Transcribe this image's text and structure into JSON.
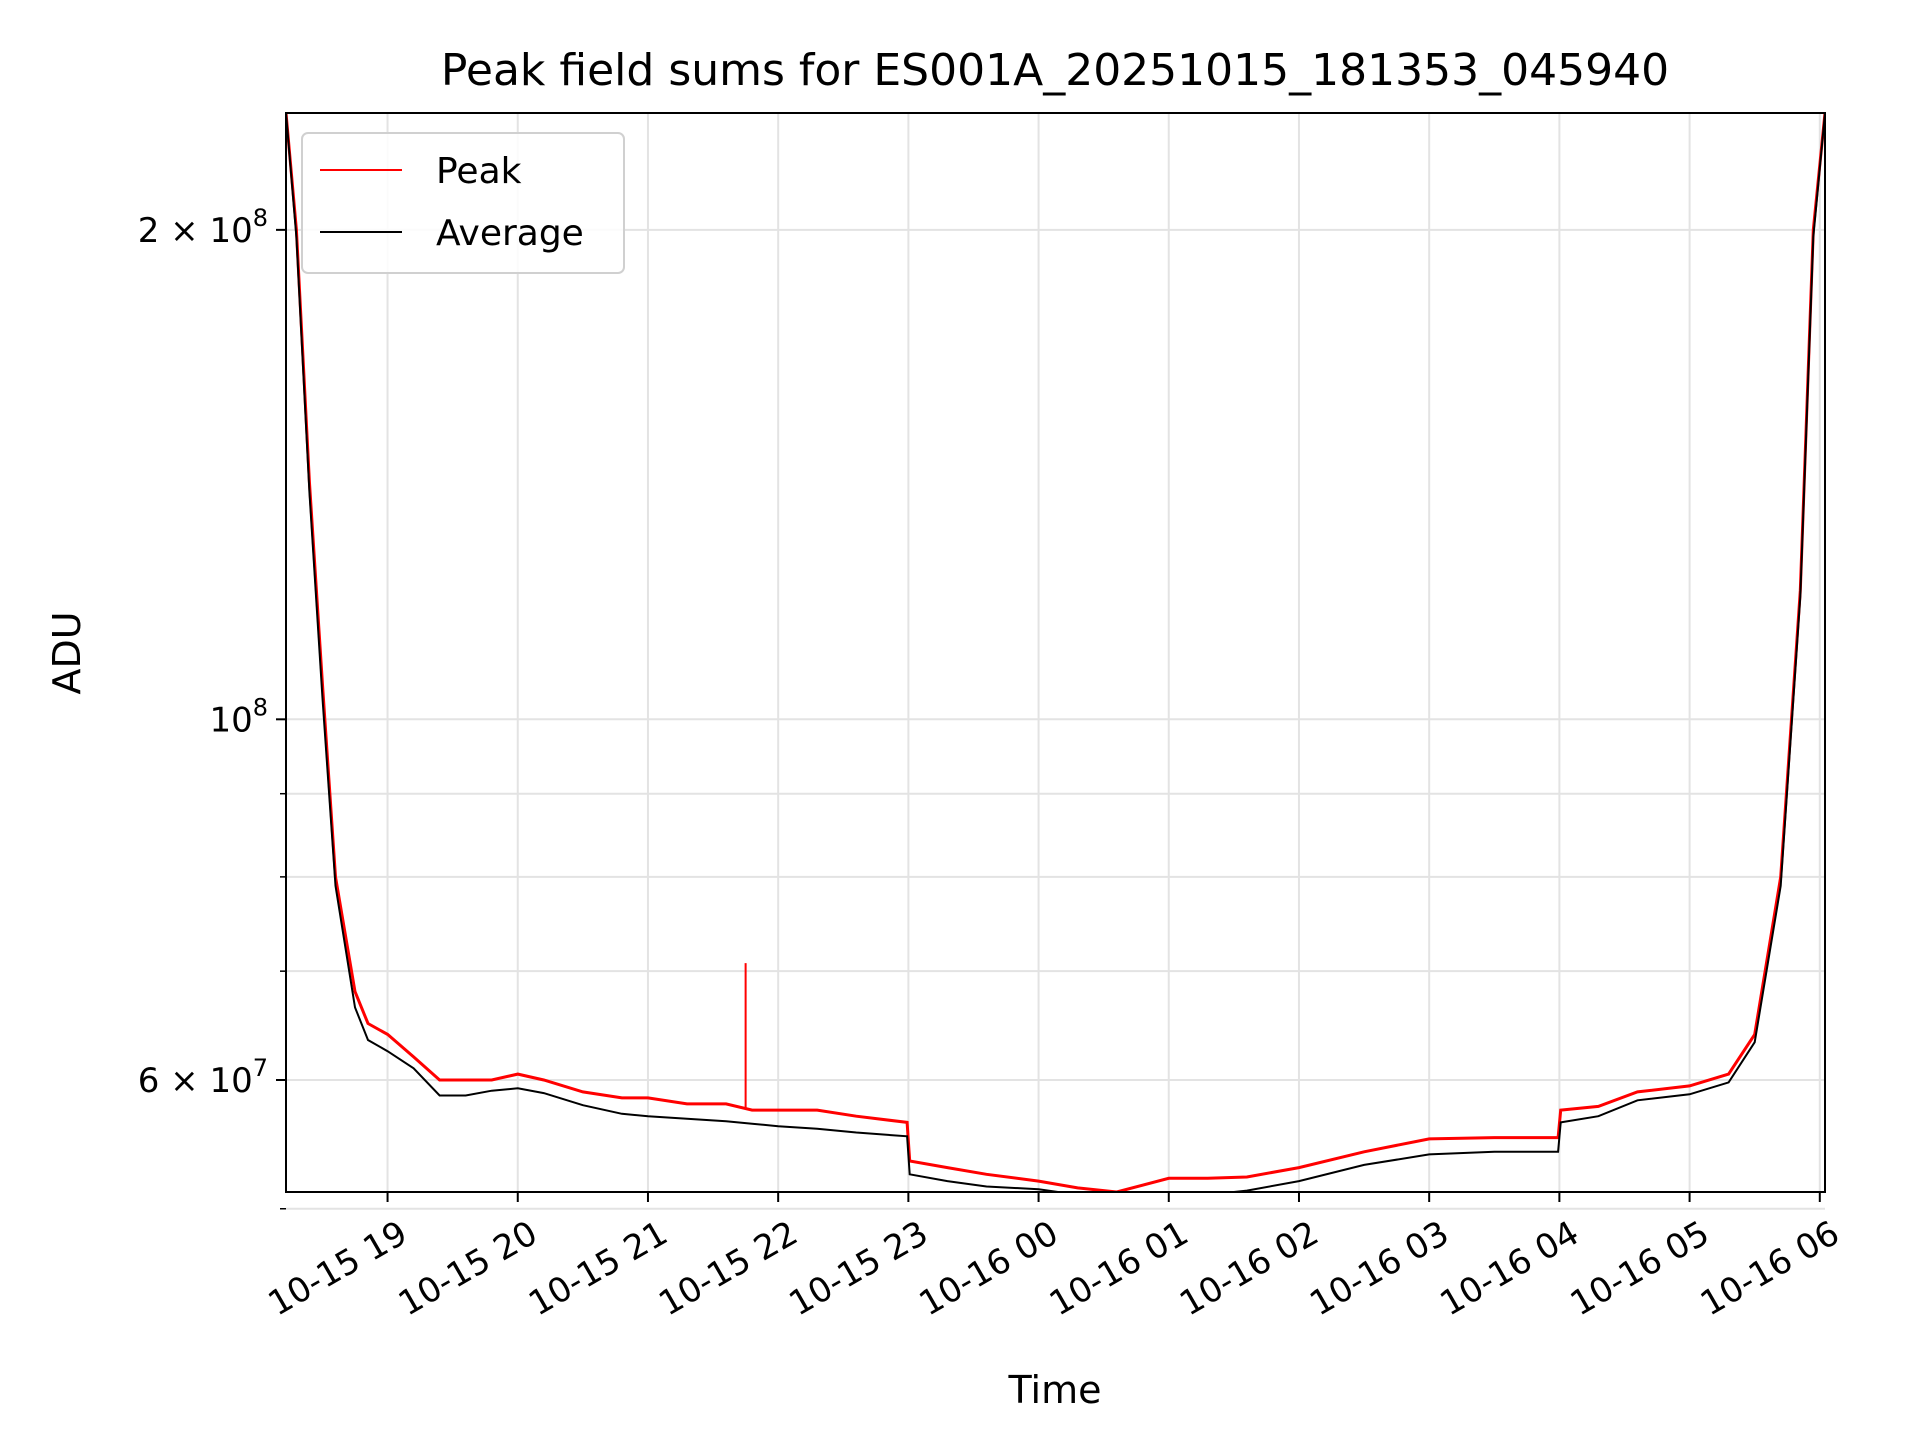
{
  "chart_data": {
    "type": "line",
    "title": "Peak field sums for ES001A_20251015_181353_045940",
    "xlabel": "Time",
    "ylabel": "ADU",
    "yscale": "log",
    "xlim_hours": [
      18.22,
      30.04
    ],
    "ylim": [
      51200000,
      236000000
    ],
    "x_unit": "hours since 2025-10-15 00:00",
    "x_ticks": [
      {
        "value": 19,
        "label": "10-15 19"
      },
      {
        "value": 20,
        "label": "10-15 20"
      },
      {
        "value": 21,
        "label": "10-15 21"
      },
      {
        "value": 22,
        "label": "10-15 22"
      },
      {
        "value": 23,
        "label": "10-15 23"
      },
      {
        "value": 24,
        "label": "10-16 00"
      },
      {
        "value": 25,
        "label": "10-16 01"
      },
      {
        "value": 26,
        "label": "10-16 02"
      },
      {
        "value": 27,
        "label": "10-16 03"
      },
      {
        "value": 28,
        "label": "10-16 04"
      },
      {
        "value": 29,
        "label": "10-16 05"
      },
      {
        "value": 30,
        "label": "10-16 06"
      }
    ],
    "y_major_ticks": [
      {
        "value": 60000000,
        "mant": "6",
        "exp": "7",
        "label": "6 × 10^7"
      },
      {
        "value": 100000000,
        "mant": "",
        "exp": "8",
        "label": "10^8"
      },
      {
        "value": 200000000,
        "mant": "2",
        "exp": "8",
        "label": "2 × 10^8"
      }
    ],
    "y_minor_ticks": [
      50000000,
      70000000,
      80000000,
      90000000
    ],
    "legend": {
      "location": "upper-left",
      "entries": [
        "Peak",
        "Average"
      ]
    },
    "series": [
      {
        "name": "Peak",
        "color": "#ff0000",
        "x": [
          18.22,
          18.3,
          18.4,
          18.5,
          18.6,
          18.75,
          18.85,
          19.0,
          19.2,
          19.4,
          19.6,
          19.8,
          20.0,
          20.2,
          20.5,
          20.8,
          21.0,
          21.3,
          21.6,
          21.8,
          22.0,
          22.3,
          22.6,
          22.99,
          23.01,
          23.3,
          23.6,
          24.0,
          24.3,
          24.6,
          25.0,
          25.3,
          25.6,
          26.0,
          26.5,
          27.0,
          27.5,
          27.99,
          28.01,
          28.3,
          28.6,
          29.0,
          29.3,
          29.5,
          29.7,
          29.85,
          29.95,
          30.04
        ],
        "y": [
          236000000,
          200000000,
          140000000,
          105000000,
          80000000,
          68000000,
          65000000,
          64000000,
          62000000,
          60000000,
          60000000,
          60000000,
          60500000,
          60000000,
          59000000,
          58500000,
          58500000,
          58000000,
          58000000,
          57500000,
          57500000,
          57500000,
          57000000,
          56500000,
          53500000,
          53000000,
          52500000,
          52000000,
          51500000,
          51200000,
          52200000,
          52200000,
          52300000,
          53000000,
          54200000,
          55200000,
          55300000,
          55300000,
          57500000,
          57800000,
          59000000,
          59500000,
          60500000,
          64000000,
          80000000,
          120000000,
          200000000,
          236000000
        ]
      },
      {
        "name": "Average",
        "color": "#000000",
        "x": [
          18.22,
          18.3,
          18.4,
          18.5,
          18.6,
          18.75,
          18.85,
          19.0,
          19.2,
          19.4,
          19.6,
          19.8,
          20.0,
          20.2,
          20.5,
          20.8,
          21.0,
          21.3,
          21.6,
          21.8,
          22.0,
          22.3,
          22.6,
          22.99,
          23.01,
          23.3,
          23.6,
          24.0,
          24.3,
          24.6,
          25.0,
          25.3,
          25.6,
          26.0,
          26.5,
          27.0,
          27.5,
          27.99,
          28.01,
          28.3,
          28.6,
          29.0,
          29.3,
          29.5,
          29.7,
          29.85,
          29.95,
          30.04
        ],
        "y": [
          236000000,
          198000000,
          138000000,
          103000000,
          79000000,
          66500000,
          63500000,
          62500000,
          61000000,
          58700000,
          58700000,
          59100000,
          59300000,
          58900000,
          57900000,
          57200000,
          57000000,
          56800000,
          56600000,
          56400000,
          56200000,
          56000000,
          55700000,
          55400000,
          52500000,
          52000000,
          51600000,
          51400000,
          51000000,
          50900000,
          50900000,
          51000000,
          51300000,
          52000000,
          53200000,
          54000000,
          54200000,
          54200000,
          56500000,
          57000000,
          58300000,
          58800000,
          59800000,
          63300000,
          79000000,
          119000000,
          198000000,
          236000000
        ]
      }
    ],
    "spikes": [
      {
        "series": "Peak",
        "x": 21.75,
        "y": 70800000
      }
    ]
  }
}
